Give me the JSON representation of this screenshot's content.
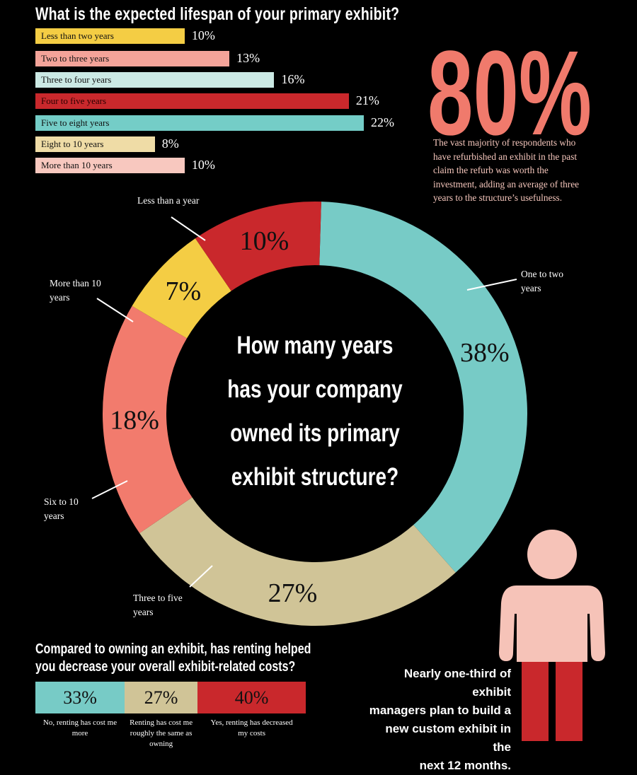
{
  "lifespan": {
    "title": "What is the expected lifespan of your primary exhibit?"
  },
  "big_stat": {
    "value": "80%",
    "text": "The vast majority of respondents who have refurbished an exhibit in the past claim the refurb was worth the investment, adding an average of three years to the structure’s usefulness."
  },
  "ownership": {
    "question": "How many years has your company owned its primary exhibit structure?",
    "callouts": [
      "Less than a year",
      "One to two years",
      "Three to five years",
      "Six to 10 years",
      "More than 10 years"
    ]
  },
  "renting": {
    "title_line1": "Compared to owning an exhibit, has renting helped",
    "title_line2": "you decrease your overall exhibit-related costs?"
  },
  "custom_exhibit": {
    "line1": "Nearly one-third of exhibit",
    "line2": "managers plan to build a",
    "line3": "new custom exhibit in the",
    "line4": "next 12 months.",
    "figure_colors": {
      "head_body": "#f6c3b8",
      "legs": "#c9282c"
    }
  },
  "chart_data": [
    {
      "type": "bar",
      "title": "What is the expected lifespan of your primary exhibit?",
      "categories": [
        "Less than two years",
        "Two to three years",
        "Three to four years",
        "Four to five years",
        "Five to eight years",
        "Eight to 10 years",
        "More than 10 years"
      ],
      "values": [
        10,
        13,
        16,
        21,
        22,
        8,
        10
      ],
      "value_labels": [
        "10%",
        "13%",
        "16%",
        "21%",
        "22%",
        "8%",
        "10%"
      ],
      "colors": [
        "#f4cd44",
        "#f4a399",
        "#cbe9e4",
        "#c9282c",
        "#74cdc7",
        "#efdca6",
        "#f8c8bf"
      ],
      "xlim": [
        0,
        22
      ],
      "orientation": "horizontal"
    },
    {
      "type": "pie",
      "title": "How many years has your company owned its primary exhibit structure?",
      "categories": [
        "One to two years",
        "Three to five years",
        "Six to 10 years",
        "More than 10 years",
        "Less than a year"
      ],
      "values": [
        38,
        27,
        18,
        7,
        10
      ],
      "value_labels": [
        "38%",
        "27%",
        "18%",
        "7%",
        "10%"
      ],
      "colors": [
        "#77cbc6",
        "#d0c497",
        "#f27b6d",
        "#f4cd44",
        "#c9282c"
      ],
      "donut": true
    },
    {
      "type": "bar",
      "stacked": true,
      "title": "Compared to owning an exhibit, has renting helped you decrease your overall exhibit-related costs?",
      "categories": [
        "No, renting has cost me more",
        "Renting has cost me roughly the same as owning",
        "Yes, renting has decreased my costs"
      ],
      "values": [
        33,
        27,
        40
      ],
      "value_labels": [
        "33%",
        "27%",
        "40%"
      ],
      "colors": [
        "#77cbc6",
        "#d0c497",
        "#c9282c"
      ]
    }
  ]
}
